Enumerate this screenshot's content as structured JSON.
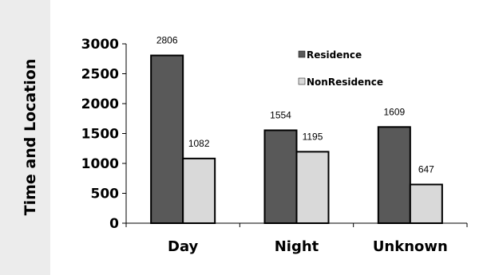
{
  "chart_data": {
    "type": "bar",
    "title": "",
    "xlabel": "",
    "ylabel": "Time and Location",
    "categories": [
      "Day",
      "Night",
      "Unknown"
    ],
    "series": [
      {
        "name": "Residence",
        "values": [
          2806,
          1554,
          1609
        ],
        "color": "#595959"
      },
      {
        "name": "NonResidence",
        "values": [
          1082,
          1195,
          647
        ],
        "color": "#d9d9d9"
      }
    ],
    "ylim": [
      0,
      3000
    ],
    "yticks": [
      "0",
      "500",
      "1000",
      "1500",
      "2000",
      "2500",
      "3000"
    ],
    "grid": false,
    "legend": "top-right"
  }
}
